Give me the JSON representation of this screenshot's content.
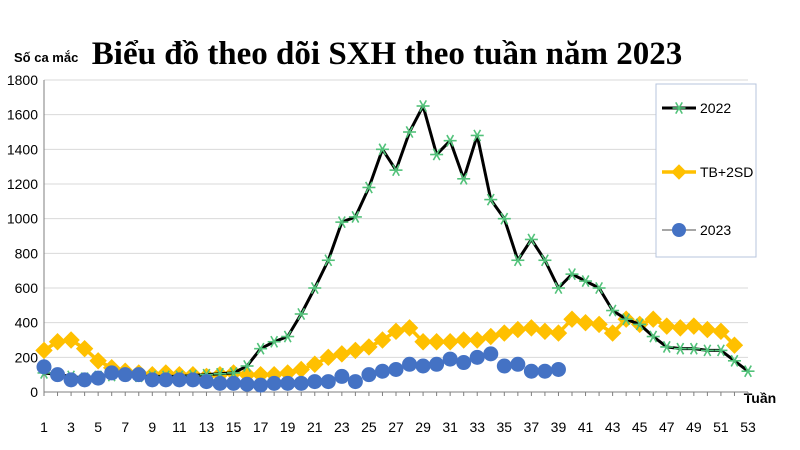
{
  "chart_data": {
    "type": "line",
    "title": "Biểu đồ theo dõi SXH theo tuần năm 2023",
    "ylabel": "Số ca mắc",
    "xlabel": "Tuần",
    "ylim": [
      0,
      1800
    ],
    "xlim": [
      1,
      53
    ],
    "y_ticks": [
      0,
      200,
      400,
      600,
      800,
      1000,
      1200,
      1400,
      1600,
      1800
    ],
    "x_ticks": [
      1,
      3,
      5,
      7,
      9,
      11,
      13,
      15,
      17,
      19,
      21,
      23,
      25,
      27,
      29,
      31,
      33,
      35,
      37,
      39,
      41,
      43,
      45,
      47,
      49,
      51,
      53
    ],
    "grid": "horizontal",
    "legend_position": "top-right",
    "series": [
      {
        "name": "2022",
        "color": "#000000",
        "marker": "asterisk",
        "marker_color": "#52c27a",
        "x": [
          1,
          2,
          3,
          4,
          5,
          6,
          7,
          8,
          9,
          10,
          11,
          12,
          13,
          14,
          15,
          16,
          17,
          18,
          19,
          20,
          21,
          22,
          23,
          24,
          25,
          26,
          27,
          28,
          29,
          30,
          31,
          32,
          33,
          34,
          35,
          36,
          37,
          38,
          39,
          40,
          41,
          42,
          43,
          44,
          45,
          46,
          47,
          48,
          49,
          50,
          51,
          52,
          53
        ],
        "values": [
          110,
          100,
          90,
          80,
          90,
          95,
          100,
          90,
          90,
          90,
          90,
          95,
          100,
          105,
          110,
          150,
          250,
          290,
          320,
          450,
          600,
          760,
          980,
          1010,
          1180,
          1400,
          1280,
          1500,
          1650,
          1370,
          1450,
          1230,
          1480,
          1110,
          1000,
          760,
          880,
          760,
          600,
          680,
          640,
          600,
          470,
          420,
          390,
          320,
          260,
          250,
          250,
          240,
          240,
          180,
          120
        ]
      },
      {
        "name": "TB+2SD",
        "color": "#ffc000",
        "marker": "diamond",
        "x": [
          1,
          2,
          3,
          4,
          5,
          6,
          7,
          8,
          9,
          10,
          11,
          12,
          13,
          14,
          15,
          16,
          17,
          18,
          19,
          20,
          21,
          22,
          23,
          24,
          25,
          26,
          27,
          28,
          29,
          30,
          31,
          32,
          33,
          34,
          35,
          36,
          37,
          38,
          39,
          40,
          41,
          42,
          43,
          44,
          45,
          46,
          47,
          48,
          49,
          50,
          51,
          52
        ],
        "values": [
          240,
          290,
          300,
          250,
          180,
          140,
          120,
          110,
          100,
          110,
          100,
          100,
          90,
          100,
          110,
          100,
          100,
          100,
          110,
          130,
          160,
          200,
          220,
          240,
          260,
          300,
          350,
          370,
          290,
          290,
          290,
          300,
          300,
          320,
          340,
          360,
          370,
          350,
          340,
          420,
          400,
          390,
          340,
          420,
          390,
          420,
          380,
          370,
          380,
          360,
          350,
          270
        ]
      },
      {
        "name": "2023",
        "color": "#4472c4",
        "marker": "circle",
        "x": [
          1,
          2,
          3,
          4,
          5,
          6,
          7,
          8,
          9,
          10,
          11,
          12,
          13,
          14,
          15,
          16,
          17,
          18,
          19,
          20,
          21,
          22,
          23,
          24,
          25,
          26,
          27,
          28,
          29,
          30,
          31,
          32,
          33,
          34,
          35,
          36,
          37,
          38,
          39
        ],
        "values": [
          145,
          100,
          70,
          70,
          80,
          110,
          100,
          100,
          70,
          70,
          70,
          70,
          60,
          50,
          50,
          45,
          40,
          50,
          50,
          50,
          60,
          60,
          90,
          60,
          100,
          120,
          130,
          160,
          150,
          160,
          190,
          170,
          200,
          220,
          150,
          160,
          120,
          120,
          130
        ]
      }
    ]
  }
}
